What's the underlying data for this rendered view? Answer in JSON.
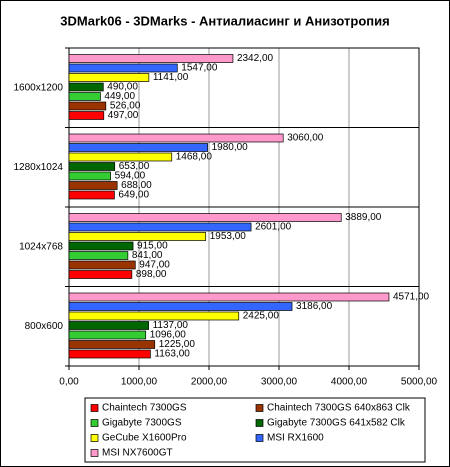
{
  "chart_data": {
    "type": "bar",
    "orientation": "horizontal",
    "title": "3DMark06 - 3DMarks - Антиалиасинг и Анизотропия",
    "categories": [
      "1600x1200",
      "1280x1024",
      "1024x768",
      "800x600"
    ],
    "series": [
      {
        "name": "Chaintech 7300GS",
        "color": "#ff0000",
        "values": [
          497,
          649,
          898,
          1163
        ],
        "value_labels": [
          "497,00",
          "649,00",
          "898,00",
          "1163,00"
        ]
      },
      {
        "name": "Chaintech 7300GS 640x863 Clk",
        "color": "#993300",
        "values": [
          526,
          688,
          947,
          1225
        ],
        "value_labels": [
          "526,00",
          "688,00",
          "947,00",
          "1225,00"
        ]
      },
      {
        "name": "Gigabyte 7300GS",
        "color": "#33cc33",
        "values": [
          449,
          594,
          841,
          1096
        ],
        "value_labels": [
          "449,00",
          "594,00",
          "841,00",
          "1096,00"
        ]
      },
      {
        "name": "Gigabyte 7300GS 641x582 Clk",
        "color": "#006600",
        "values": [
          490,
          653,
          915,
          1137
        ],
        "value_labels": [
          "490,00",
          "653,00",
          "915,00",
          "1137,00"
        ]
      },
      {
        "name": "GeCube X1600Pro",
        "color": "#ffff00",
        "values": [
          1141,
          1468,
          1953,
          2425
        ],
        "value_labels": [
          "1141,00",
          "1468,00",
          "1953,00",
          "2425,00"
        ]
      },
      {
        "name": "MSI RX1600",
        "color": "#3366ff",
        "values": [
          1547,
          1980,
          2601,
          3186
        ],
        "value_labels": [
          "1547,00",
          "1980,00",
          "2601,00",
          "3186,00"
        ]
      },
      {
        "name": "MSI NX7600GT",
        "color": "#ff99cc",
        "values": [
          2342,
          3060,
          3889,
          4571
        ],
        "value_labels": [
          "2342,00",
          "3060,00",
          "3889,00",
          "4571,00"
        ]
      }
    ],
    "xlim": [
      0,
      5000
    ],
    "xticks": [
      {
        "value": 0,
        "label": "0,00"
      },
      {
        "value": 1000,
        "label": "1000,00"
      },
      {
        "value": 2000,
        "label": "2000,00"
      },
      {
        "value": 3000,
        "label": "3000,00"
      },
      {
        "value": 4000,
        "label": "4000,00"
      },
      {
        "value": 5000,
        "label": "5000,00"
      }
    ],
    "grid": true,
    "legend": "bottom"
  }
}
